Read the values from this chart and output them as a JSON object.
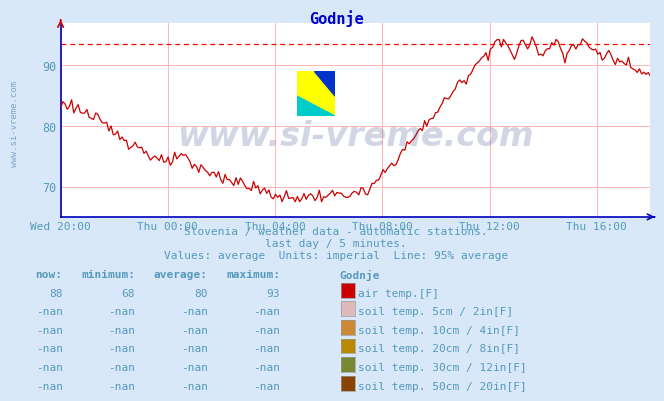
{
  "title": "Godnje",
  "title_color": "#0000cc",
  "bg_color": "#d8e8f8",
  "plot_bg_color": "#ffffff",
  "grid_color": "#ffaaaa",
  "axis_color": "#0000bb",
  "line_color": "#cc0000",
  "avg_line_color": "#ff0000",
  "avg_line_value": 93.5,
  "ylim": [
    65,
    97
  ],
  "yticks": [
    70,
    80,
    90
  ],
  "xlabel_color": "#5599bb",
  "ylabel_color": "#5599bb",
  "watermark_text": "www.si-vreme.com",
  "watermark_side": "www.si-vreme.com",
  "subtitle1": "Slovenia / weather data - automatic stations.",
  "subtitle2": "last day / 5 minutes.",
  "subtitle3": "Values: average  Units: imperial  Line: 95% average",
  "subtitle_color": "#5599bb",
  "table_header": [
    "now:",
    "minimum:",
    "average:",
    "maximum:",
    "Godnje"
  ],
  "table_rows": [
    [
      "88",
      "68",
      "80",
      "93",
      "#cc0000",
      "air temp.[F]"
    ],
    [
      "-nan",
      "-nan",
      "-nan",
      "-nan",
      "#ddbbbb",
      "soil temp. 5cm / 2in[F]"
    ],
    [
      "-nan",
      "-nan",
      "-nan",
      "-nan",
      "#cc8833",
      "soil temp. 10cm / 4in[F]"
    ],
    [
      "-nan",
      "-nan",
      "-nan",
      "-nan",
      "#bb8800",
      "soil temp. 20cm / 8in[F]"
    ],
    [
      "-nan",
      "-nan",
      "-nan",
      "-nan",
      "#778833",
      "soil temp. 30cm / 12in[F]"
    ],
    [
      "-nan",
      "-nan",
      "-nan",
      "-nan",
      "#884400",
      "soil temp. 50cm / 20in[F]"
    ]
  ],
  "xtick_labels": [
    "Wed 20:00",
    "Thu 00:00",
    "Thu 04:00",
    "Thu 08:00",
    "Thu 12:00",
    "Thu 16:00"
  ],
  "xtick_positions": [
    0.0,
    0.1818,
    0.3636,
    0.5455,
    0.7273,
    0.9091
  ]
}
